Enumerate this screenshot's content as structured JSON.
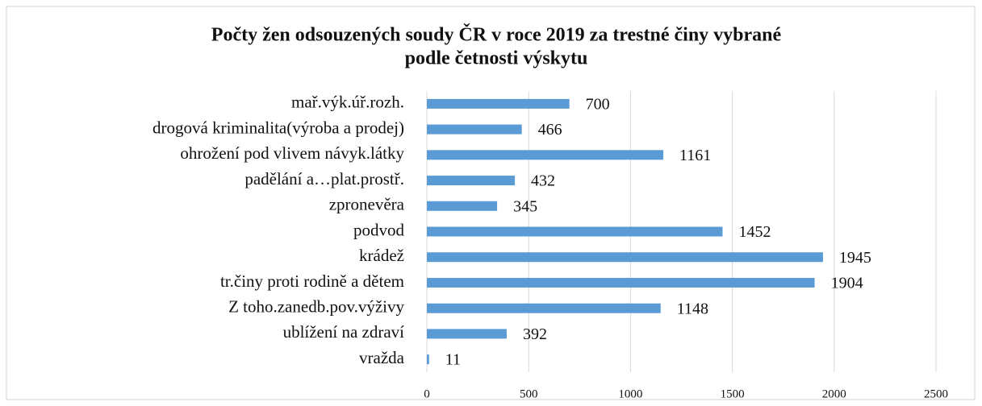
{
  "chart_data": {
    "type": "bar",
    "orientation": "horizontal",
    "title": [
      "Počty žen odsouzených soudy ČR v roce 2019 za trestné činy vybrané",
      "podle četnosti výskytu"
    ],
    "categories": [
      "mař.výk.úř.rozh.",
      "drogová kriminalita(výroba a prodej)",
      "ohrožení pod vlivem návyk.látky",
      "padělání a…plat.prostř.",
      "zpronevěra",
      "podvod",
      "krádež",
      "tr.činy proti rodině a dětem",
      "Z toho.zanedb.pov.výživy",
      "ublížení na zdraví",
      "vražda"
    ],
    "values": [
      700,
      466,
      1161,
      432,
      345,
      1452,
      1945,
      1904,
      1148,
      392,
      11
    ],
    "color": "#5b9bd5",
    "xlim": [
      0,
      2500
    ],
    "xticks": [
      0,
      500,
      1000,
      1500,
      2000,
      2500
    ],
    "grid": true
  }
}
